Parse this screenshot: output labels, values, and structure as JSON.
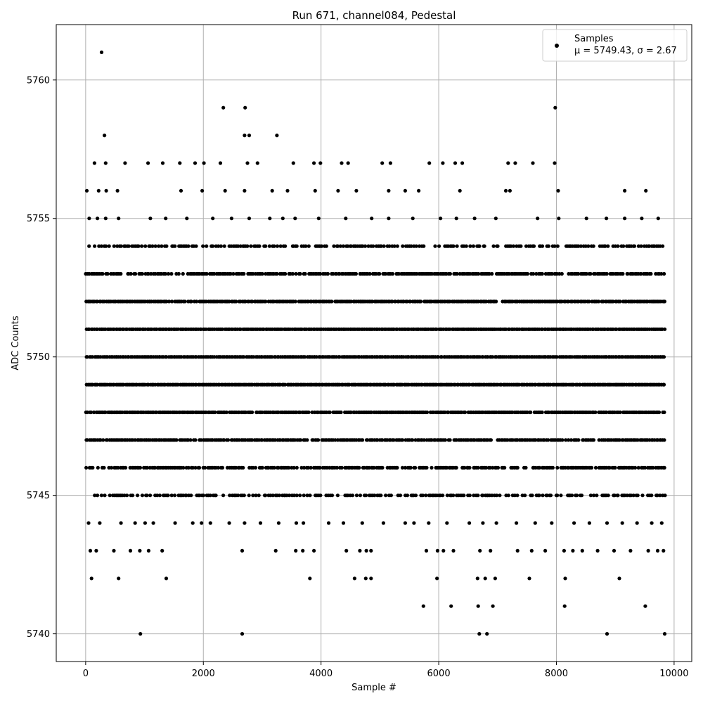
{
  "chart_data": {
    "type": "scatter",
    "title": "Run 671, channel084, Pedestal",
    "xlabel": "Sample #",
    "ylabel": "ADC Counts",
    "xlim": [
      -500,
      10300
    ],
    "ylim": [
      5739.0,
      5762.0
    ],
    "x_ticks": [
      0,
      2000,
      4000,
      6000,
      8000,
      10000
    ],
    "x_tick_labels": [
      "0",
      "2000",
      "4000",
      "6000",
      "8000",
      "10000"
    ],
    "y_ticks": [
      5740,
      5745,
      5750,
      5755,
      5760
    ],
    "y_tick_labels": [
      "5740",
      "5745",
      "5750",
      "5755",
      "5760"
    ],
    "grid": true,
    "legend_position": "top-right",
    "series": [
      {
        "name": "Samples",
        "stats_label": "μ = 5749.43, σ = 2.67",
        "color": "#000000",
        "marker": "dot",
        "n_samples": 9850,
        "x_range": [
          0,
          9850
        ],
        "mean": 5749.43,
        "std": 2.67,
        "points": [
          [
            270,
            5761
          ],
          [
            2340,
            5759
          ],
          [
            2710,
            5759
          ],
          [
            7980,
            5759
          ],
          [
            320,
            5758
          ],
          [
            2700,
            5758
          ],
          [
            2780,
            5758
          ],
          [
            3250,
            5758
          ],
          [
            930,
            5740
          ],
          [
            2660,
            5740
          ],
          [
            6690,
            5740
          ],
          [
            6820,
            5740
          ],
          [
            8860,
            5740
          ],
          [
            9840,
            5740
          ],
          [
            5740,
            5741
          ],
          [
            6210,
            5741
          ],
          [
            6670,
            5741
          ],
          [
            6920,
            5741
          ],
          [
            8140,
            5741
          ],
          [
            9510,
            5741
          ],
          [
            100,
            5742
          ],
          [
            560,
            5742
          ],
          [
            1370,
            5742
          ],
          [
            3810,
            5742
          ],
          [
            4570,
            5742
          ],
          [
            4760,
            5742
          ],
          [
            4850,
            5742
          ],
          [
            5970,
            5742
          ],
          [
            6660,
            5742
          ],
          [
            6790,
            5742
          ],
          [
            6960,
            5742
          ],
          [
            7540,
            5742
          ],
          [
            8150,
            5742
          ],
          [
            9070,
            5742
          ],
          [
            80,
            5743
          ],
          [
            180,
            5743
          ],
          [
            480,
            5743
          ],
          [
            760,
            5743
          ],
          [
            920,
            5743
          ],
          [
            1070,
            5743
          ],
          [
            1300,
            5743
          ],
          [
            2660,
            5743
          ],
          [
            3230,
            5743
          ],
          [
            3570,
            5743
          ],
          [
            3690,
            5743
          ],
          [
            3880,
            5743
          ],
          [
            4430,
            5743
          ],
          [
            4660,
            5743
          ],
          [
            4770,
            5743
          ],
          [
            4850,
            5743
          ],
          [
            5790,
            5743
          ],
          [
            5980,
            5743
          ],
          [
            6080,
            5743
          ],
          [
            6250,
            5743
          ],
          [
            6700,
            5743
          ],
          [
            6880,
            5743
          ],
          [
            7340,
            5743
          ],
          [
            7580,
            5743
          ],
          [
            7810,
            5743
          ],
          [
            8130,
            5743
          ],
          [
            8280,
            5743
          ],
          [
            8440,
            5743
          ],
          [
            8700,
            5743
          ],
          [
            8980,
            5743
          ],
          [
            9260,
            5743
          ],
          [
            9560,
            5743
          ],
          [
            9720,
            5743
          ],
          [
            9820,
            5743
          ],
          [
            50,
            5744
          ],
          [
            240,
            5744
          ],
          [
            600,
            5744
          ],
          [
            840,
            5744
          ],
          [
            1010,
            5744
          ],
          [
            1150,
            5744
          ],
          [
            1520,
            5744
          ],
          [
            1820,
            5744
          ],
          [
            1970,
            5744
          ],
          [
            2120,
            5744
          ],
          [
            2440,
            5744
          ],
          [
            2700,
            5744
          ],
          [
            2970,
            5744
          ],
          [
            3280,
            5744
          ],
          [
            3580,
            5744
          ],
          [
            3700,
            5744
          ],
          [
            4130,
            5744
          ],
          [
            4380,
            5744
          ],
          [
            4700,
            5744
          ],
          [
            5060,
            5744
          ],
          [
            5430,
            5744
          ],
          [
            5580,
            5744
          ],
          [
            5830,
            5744
          ],
          [
            6140,
            5744
          ],
          [
            6520,
            5744
          ],
          [
            6750,
            5744
          ],
          [
            6980,
            5744
          ],
          [
            7320,
            5744
          ],
          [
            7640,
            5744
          ],
          [
            7920,
            5744
          ],
          [
            8300,
            5744
          ],
          [
            8560,
            5744
          ],
          [
            8860,
            5744
          ],
          [
            9120,
            5744
          ],
          [
            9370,
            5744
          ],
          [
            9620,
            5744
          ],
          [
            9790,
            5744
          ],
          [
            20,
            5756
          ],
          [
            220,
            5756
          ],
          [
            350,
            5756
          ],
          [
            540,
            5756
          ],
          [
            1620,
            5756
          ],
          [
            1980,
            5756
          ],
          [
            2370,
            5756
          ],
          [
            2700,
            5756
          ],
          [
            3170,
            5756
          ],
          [
            3430,
            5756
          ],
          [
            3900,
            5756
          ],
          [
            4290,
            5756
          ],
          [
            4600,
            5756
          ],
          [
            5150,
            5756
          ],
          [
            5430,
            5756
          ],
          [
            5660,
            5756
          ],
          [
            6360,
            5756
          ],
          [
            7140,
            5756
          ],
          [
            7210,
            5756
          ],
          [
            8030,
            5756
          ],
          [
            9160,
            5756
          ],
          [
            9520,
            5756
          ],
          [
            150,
            5757
          ],
          [
            340,
            5757
          ],
          [
            670,
            5757
          ],
          [
            1060,
            5757
          ],
          [
            1310,
            5757
          ],
          [
            1600,
            5757
          ],
          [
            1860,
            5757
          ],
          [
            2010,
            5757
          ],
          [
            2290,
            5757
          ],
          [
            2750,
            5757
          ],
          [
            2920,
            5757
          ],
          [
            3530,
            5757
          ],
          [
            3880,
            5757
          ],
          [
            3990,
            5757
          ],
          [
            4350,
            5757
          ],
          [
            4460,
            5757
          ],
          [
            5040,
            5757
          ],
          [
            5180,
            5757
          ],
          [
            5840,
            5757
          ],
          [
            6070,
            5757
          ],
          [
            6280,
            5757
          ],
          [
            6400,
            5757
          ],
          [
            7180,
            5757
          ],
          [
            7300,
            5757
          ],
          [
            7600,
            5757
          ],
          [
            7970,
            5757
          ],
          [
            60,
            5755
          ],
          [
            200,
            5755
          ],
          [
            340,
            5755
          ],
          [
            560,
            5755
          ],
          [
            1100,
            5755
          ],
          [
            1360,
            5755
          ],
          [
            1720,
            5755
          ],
          [
            2160,
            5755
          ],
          [
            2480,
            5755
          ],
          [
            2780,
            5755
          ],
          [
            3130,
            5755
          ],
          [
            3350,
            5755
          ],
          [
            3560,
            5755
          ],
          [
            3960,
            5755
          ],
          [
            4420,
            5755
          ],
          [
            4860,
            5755
          ],
          [
            5150,
            5755
          ],
          [
            5560,
            5755
          ],
          [
            6030,
            5755
          ],
          [
            6300,
            5755
          ],
          [
            6610,
            5755
          ],
          [
            6970,
            5755
          ],
          [
            7680,
            5755
          ],
          [
            8040,
            5755
          ],
          [
            8510,
            5755
          ],
          [
            8850,
            5755
          ],
          [
            9160,
            5755
          ],
          [
            9450,
            5755
          ],
          [
            9730,
            5755
          ]
        ],
        "dense_levels": [
          {
            "value": 5745,
            "density": 0.55
          },
          {
            "value": 5746,
            "density": 0.8
          },
          {
            "value": 5747,
            "density": 0.9
          },
          {
            "value": 5748,
            "density": 0.97
          },
          {
            "value": 5749,
            "density": 1.0
          },
          {
            "value": 5750,
            "density": 1.0
          },
          {
            "value": 5751,
            "density": 1.0
          },
          {
            "value": 5752,
            "density": 0.95
          },
          {
            "value": 5753,
            "density": 0.85
          },
          {
            "value": 5754,
            "density": 0.6
          }
        ]
      }
    ]
  }
}
